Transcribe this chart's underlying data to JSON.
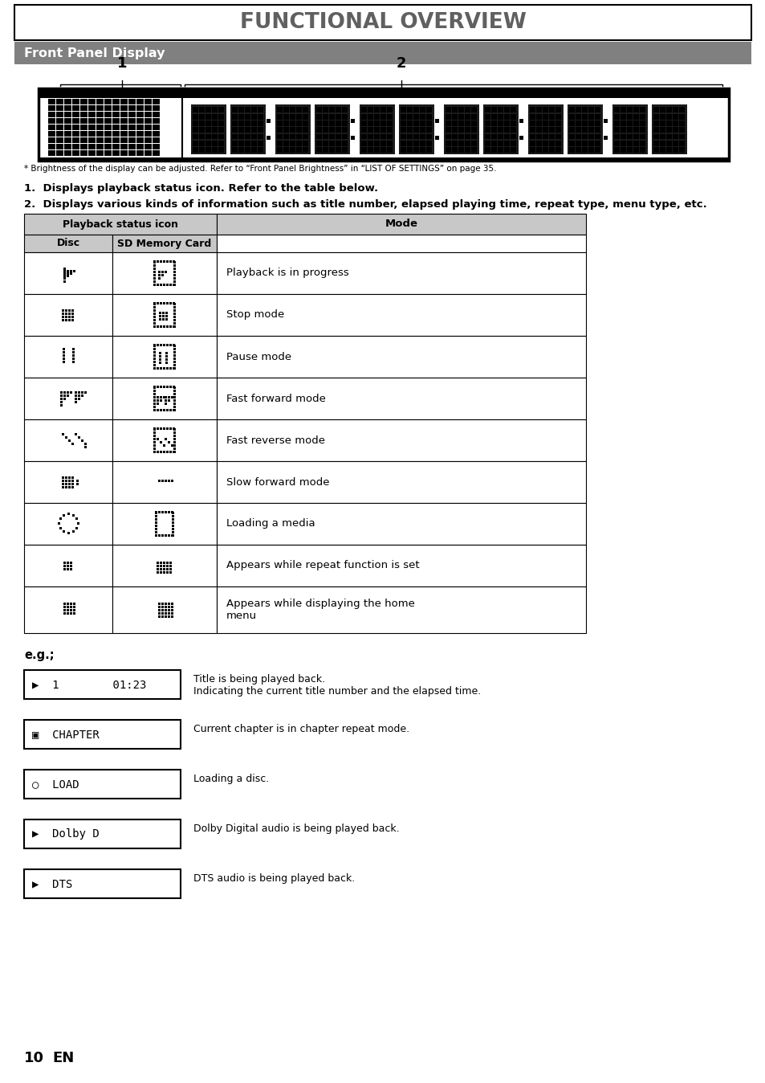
{
  "title": "FUNCTIONAL OVERVIEW",
  "section_title": "Front Panel Display",
  "footnote": "* Brightness of the display can be adjusted. Refer to “Front Panel Brightness” in “LIST OF SETTINGS” on page 35.",
  "point1": "1.  Displays playback status icon. Refer to the table below.",
  "point2": "2.  Displays various kinds of information such as title number, elapsed playing time, repeat type, menu type, etc.",
  "table_header_col1": "Playback status icon",
  "table_sub_col1": "Disc",
  "table_sub_col2": "SD Memory Card",
  "table_col3": "Mode",
  "table_rows": [
    {
      "mode": "Playback is in progress"
    },
    {
      "mode": "Stop mode"
    },
    {
      "mode": "Pause mode"
    },
    {
      "mode": "Fast forward mode"
    },
    {
      "mode": "Fast reverse mode"
    },
    {
      "mode": "Slow forward mode"
    },
    {
      "mode": "Loading a media"
    },
    {
      "mode": "Appears while repeat function is set"
    },
    {
      "mode": "Appears while displaying the home\nmenu"
    }
  ],
  "eg_label": "e.g.;",
  "eg_displays": [
    "▶  1        01:23",
    "▣  CHAPTER",
    "○  LOAD",
    "▶  Dolby D",
    "▶  DTS"
  ],
  "eg_descs": [
    "Title is being played back.\nIndicating the current title number and the elapsed time.",
    "Current chapter is in chapter repeat mode.",
    "Loading a disc.",
    "Dolby Digital audio is being played back.",
    "DTS audio is being played back."
  ],
  "page_number": "10",
  "page_lang": "EN",
  "bg_color": "#ffffff",
  "section_bg": "#808080",
  "table_header_bg": "#c8c8c8"
}
